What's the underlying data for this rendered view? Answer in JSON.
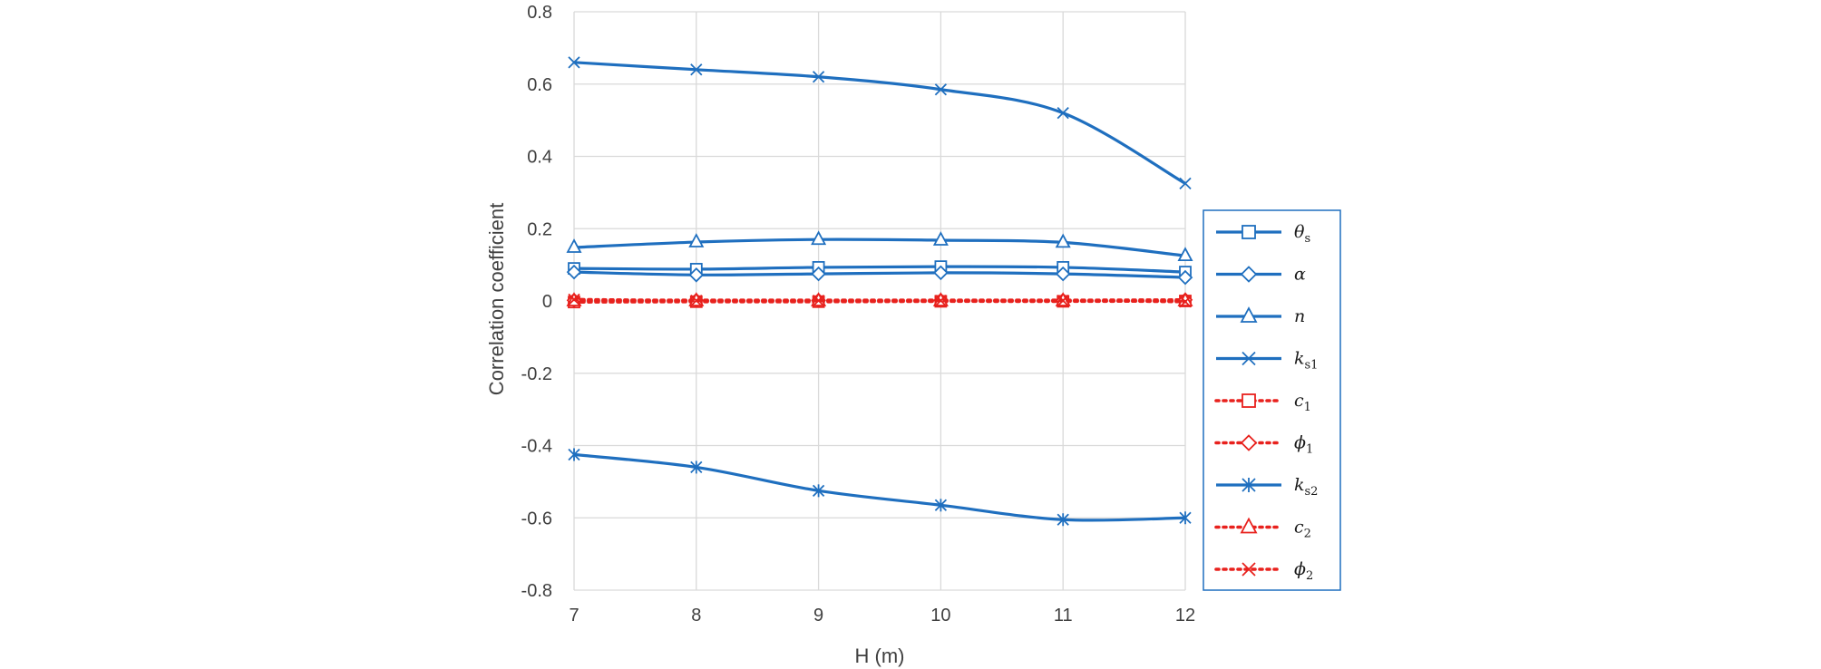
{
  "chart_data": {
    "type": "line",
    "title": "",
    "xlabel": "H (m)",
    "ylabel": "Correlation coefficient",
    "x": [
      7,
      8,
      9,
      10,
      11,
      12
    ],
    "xlim": [
      7,
      12
    ],
    "ylim": [
      -0.8,
      0.8
    ],
    "yticks": [
      0.8,
      0.6,
      0.4,
      0.2,
      0,
      -0.2,
      -0.4,
      -0.6,
      -0.8
    ],
    "yticklabels": [
      "0.8",
      "0.6",
      "0.4",
      "0.2",
      "0",
      "-0.2",
      "-0.4",
      "-0.6",
      "-0.8"
    ],
    "xticklabels": [
      "7",
      "8",
      "9",
      "10",
      "11",
      "12"
    ],
    "grid": true,
    "legend_position": "right",
    "series": [
      {
        "name": "θs",
        "base": "θ",
        "sub": "s",
        "values": [
          0.09,
          0.088,
          0.093,
          0.095,
          0.093,
          0.08
        ],
        "color": "#1f6fbf",
        "style": "solid",
        "marker": "square"
      },
      {
        "name": "α",
        "base": "α",
        "sub": "",
        "values": [
          0.08,
          0.072,
          0.075,
          0.078,
          0.075,
          0.065
        ],
        "color": "#1f6fbf",
        "style": "solid",
        "marker": "diamond"
      },
      {
        "name": "n",
        "base": "n",
        "sub": "",
        "values": [
          0.148,
          0.163,
          0.17,
          0.168,
          0.162,
          0.125
        ],
        "color": "#1f6fbf",
        "style": "solid",
        "marker": "triangle"
      },
      {
        "name": "ks1",
        "base": "k",
        "sub": "s1",
        "values": [
          0.66,
          0.64,
          0.62,
          0.585,
          0.52,
          0.325
        ],
        "color": "#1f6fbf",
        "style": "solid",
        "marker": "x"
      },
      {
        "name": "c1",
        "base": "c",
        "sub": "1",
        "values": [
          -0.003,
          -0.002,
          -0.002,
          -0.001,
          -0.001,
          0
        ],
        "color": "#e8211d",
        "style": "dotted",
        "marker": "square"
      },
      {
        "name": "φ1",
        "base": "ϕ",
        "sub": "1",
        "values": [
          0.002,
          0.002,
          0.002,
          0.002,
          0.002,
          0.003
        ],
        "color": "#e8211d",
        "style": "dotted",
        "marker": "diamond"
      },
      {
        "name": "ks2",
        "base": "k",
        "sub": "s2",
        "values": [
          -0.425,
          -0.46,
          -0.525,
          -0.565,
          -0.605,
          -0.6
        ],
        "color": "#1f6fbf",
        "style": "solid",
        "marker": "asterisk"
      },
      {
        "name": "c2",
        "base": "c",
        "sub": "2",
        "values": [
          0,
          0,
          0,
          0,
          0,
          0
        ],
        "color": "#e8211d",
        "style": "dotted",
        "marker": "triangle"
      },
      {
        "name": "φ2",
        "base": "ϕ",
        "sub": "2",
        "values": [
          0.004,
          0.001,
          0.001,
          0.001,
          0.001,
          -0.002
        ],
        "color": "#e8211d",
        "style": "dotted",
        "marker": "x"
      }
    ]
  }
}
